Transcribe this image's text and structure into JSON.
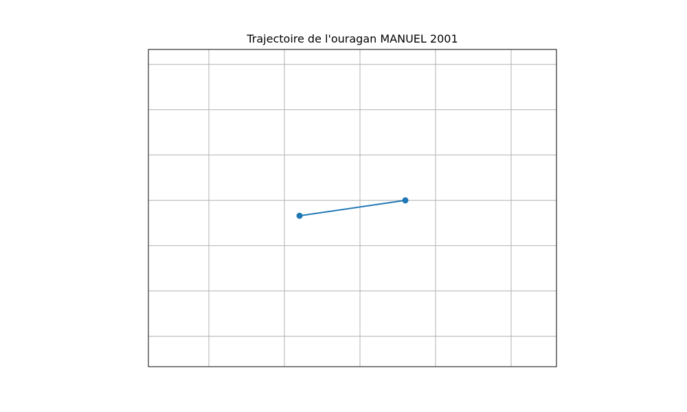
{
  "chart_data": {
    "type": "line",
    "title": "Trajectoire de l'ouragan MANUEL 2001",
    "xlabel": "",
    "ylabel": "",
    "x_ticks_visible": false,
    "y_ticks_visible": false,
    "grid": true,
    "xlim": [
      0,
      5.4
    ],
    "ylim": [
      0,
      7
    ],
    "x_gridlines": [
      0.8,
      1.8,
      2.8,
      3.8,
      4.8
    ],
    "y_gridlines": [
      0.67,
      1.67,
      2.67,
      3.67,
      4.67,
      5.67,
      6.67
    ],
    "series": [
      {
        "marker": "circle",
        "color": "#1f77b4",
        "points": [
          {
            "x": 2.0,
            "y": 3.33
          },
          {
            "x": 3.4,
            "y": 3.67
          }
        ]
      }
    ]
  },
  "colors": {
    "series": "#1f77b4",
    "grid": "#b0b0b0",
    "frame": "#000000"
  }
}
